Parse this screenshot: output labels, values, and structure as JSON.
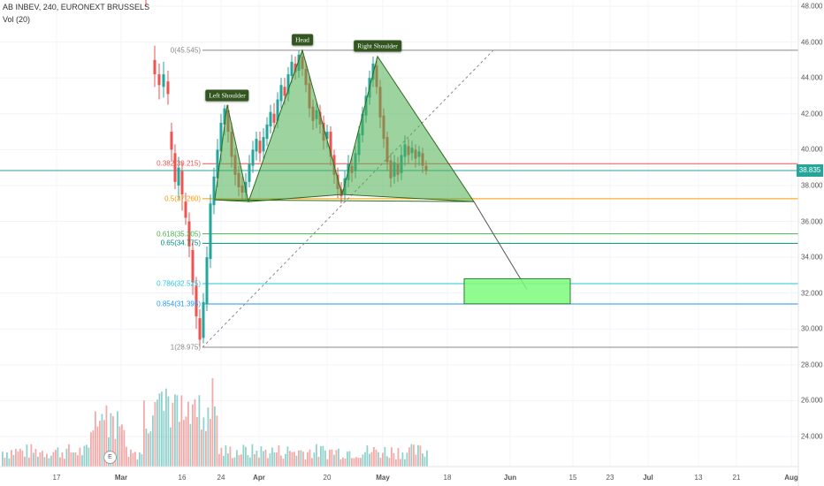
{
  "header": {
    "title": "AB INBEV, 240, EURONEXT BRUSSELS",
    "volume": "Vol (20)"
  },
  "colors": {
    "up": "#26a69a",
    "down": "#ef5350",
    "pattern_fill": "#4caf50",
    "pattern_stroke": "#2e6b1e",
    "target_box": "#7cfc7c",
    "label_bg": "#33551f",
    "price_tag": "#26a69a"
  },
  "pattern_labels": {
    "left_shoulder": "Left Shoulder",
    "head": "Head",
    "right_shoulder": "Right Shoulder"
  },
  "current_price": "38.835",
  "e_marker": "E",
  "chart_data": {
    "type": "candlestick",
    "y_axis": {
      "ylim": [
        21.0,
        49.0
      ],
      "ticks": [
        "48.000",
        "46.000",
        "44.000",
        "42.000",
        "40.000",
        "38.000",
        "36.000",
        "34.000",
        "32.000",
        "30.000",
        "28.000",
        "26.000",
        "24.000"
      ]
    },
    "x_axis": {
      "ticks": [
        "17",
        "Mar",
        "16",
        "24",
        "Apr",
        "20",
        "May",
        "18",
        "Jun",
        "15",
        "23",
        "Jul",
        "13",
        "21",
        "Aug"
      ]
    },
    "fib_levels": [
      {
        "label": "0(45.545)",
        "value": 45.545
      },
      {
        "label": "0.382(39.215)",
        "value": 39.215
      },
      {
        "label": "0.5(37.260)",
        "value": 37.26
      },
      {
        "label": "0.618(35.305)",
        "value": 35.305
      },
      {
        "label": "0.65(34.775)",
        "value": 34.775
      },
      {
        "label": "0.786(32.525)",
        "value": 32.525
      },
      {
        "label": "0.854(31.395)",
        "value": 31.395
      },
      {
        "label": "1(28.975)",
        "value": 28.975
      }
    ],
    "head_and_shoulders": {
      "left_shoulder_peak": 42.5,
      "head_peak": 45.545,
      "right_shoulder_peak": 45.2,
      "neckline": 37.2
    },
    "target_zone": [
      31.4,
      32.8
    ],
    "last_price": 38.835
  }
}
